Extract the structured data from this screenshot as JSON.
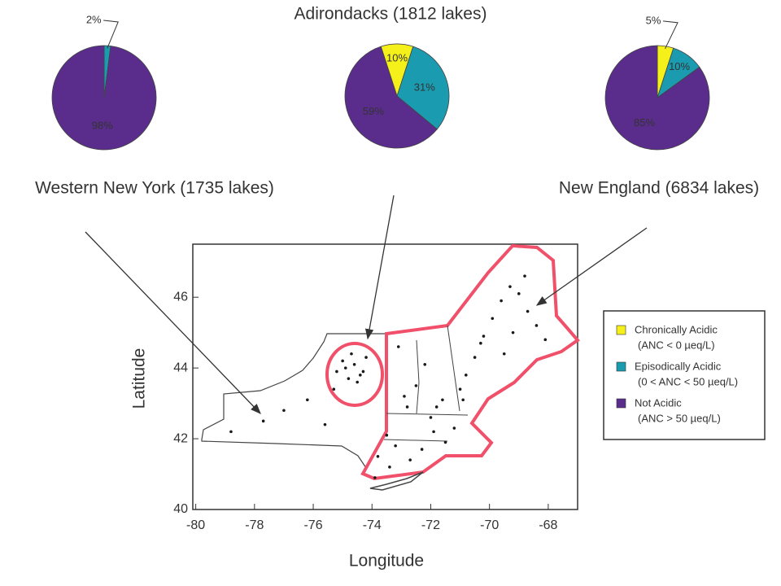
{
  "chart_data": [
    {
      "type": "pie",
      "title": "Western New York (1735 lakes)",
      "values": [
        2,
        98
      ],
      "value_labels": [
        "2%",
        "98%"
      ],
      "colors": [
        "#1a9bb0",
        "#5a2d8c"
      ]
    },
    {
      "type": "pie",
      "title": "Adirondacks (1812 lakes)",
      "values": [
        10,
        31,
        59
      ],
      "value_labels": [
        "10%",
        "31%",
        "59%"
      ],
      "colors": [
        "#f5f01a",
        "#1a9bb0",
        "#5a2d8c"
      ]
    },
    {
      "type": "pie",
      "title": "New England (6834 lakes)",
      "values": [
        5,
        10,
        85
      ],
      "value_labels": [
        "5%",
        "10%",
        "85%"
      ],
      "colors": [
        "#f5f01a",
        "#1a9bb0",
        "#5a2d8c"
      ]
    },
    {
      "type": "map",
      "x_label": "Longitude",
      "y_label": "Latitude",
      "xlim": [
        -80.1,
        -67
      ],
      "ylim": [
        40,
        47.5
      ],
      "xticks": [
        -80,
        -78,
        -76,
        -74,
        -72,
        -70,
        -68
      ],
      "yticks": [
        40,
        42,
        44,
        46
      ],
      "x": [
        -78.8,
        -77.7,
        -77,
        -76.2,
        -75.6,
        -75.2,
        -75,
        -74.8,
        -74.6,
        -74.4,
        -74.2,
        -74.9,
        -74.5,
        -74.7,
        -74.3,
        -75.3,
        -73.8,
        -73.5,
        -73.2,
        -72.8,
        -72.5,
        -72.2,
        -72,
        -71.8,
        -71.5,
        -71.2,
        -71,
        -70.8,
        -70.5,
        -70.2,
        -69.9,
        -69.6,
        -69.3,
        -69,
        -68.7,
        -68.4,
        -68.1,
        -69.5,
        -70.3,
        -71.6,
        -72.7,
        -73.4,
        -73.9,
        -72.3,
        -71.9,
        -70.9,
        -69.2,
        -68.8,
        -73.1,
        -72.9
      ],
      "y": [
        42.2,
        42.5,
        42.8,
        43.1,
        42.4,
        43.9,
        44.2,
        43.7,
        44.1,
        43.8,
        44.3,
        44,
        43.6,
        44.4,
        43.9,
        43.4,
        41.5,
        42.1,
        41.8,
        42.9,
        43.5,
        44.1,
        42.6,
        42.9,
        41.9,
        42.3,
        43.4,
        43.8,
        44.3,
        44.9,
        45.4,
        45.9,
        46.3,
        46.1,
        45.6,
        45.2,
        44.8,
        44.4,
        44.7,
        43.1,
        41.4,
        41.2,
        40.9,
        41.7,
        42.2,
        43.1,
        45,
        46.6,
        44.6,
        43.2
      ],
      "point_color": "#1a1a1a",
      "legend": [
        {
          "label": "Chronically Acidic",
          "detail": "(ANC < 0 µeq/L)",
          "color": "#f5f01a"
        },
        {
          "label": "Episodically Acidic",
          "detail": "(0 < ANC < 50 µeq/L)",
          "color": "#1a9bb0"
        },
        {
          "label": "Not Acidic",
          "detail": "(ANC > 50 µeq/L)",
          "color": "#5a2d8c"
        }
      ]
    }
  ]
}
